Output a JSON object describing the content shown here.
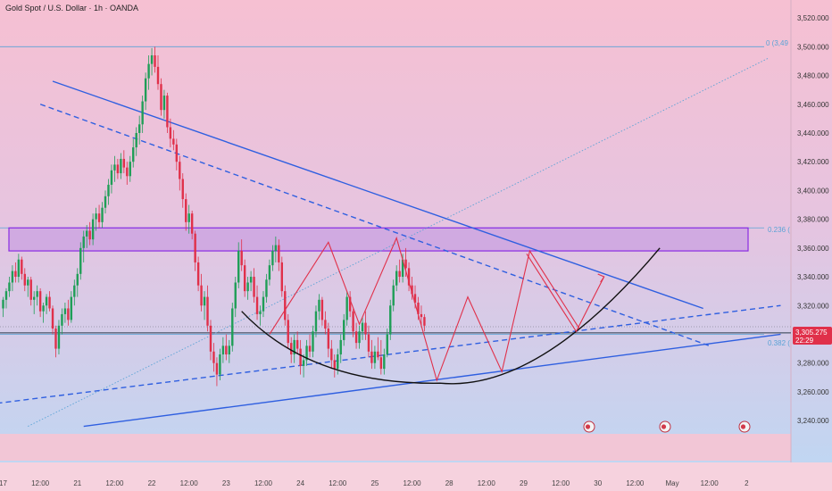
{
  "header": {
    "title": "Gold Spot / U.S. Dollar · 1h · OANDA"
  },
  "colors": {
    "bg_top": "#f6c0d2",
    "bg_bottom": "#bcd8f4",
    "up": "#1f9e57",
    "down": "#e0304a",
    "trend": "#2f5fe0",
    "curve": "#111111",
    "zone_fill": "#c9a0e0",
    "zone_stroke": "#8a2be2",
    "fib": "#5aa3d6",
    "price_badge": "#e0304a"
  },
  "price": {
    "value": "3,305.275",
    "countdown": "22:29"
  },
  "fib_labels": {
    "top": "0 (3,49",
    "mid": "0.236 (",
    "low": "0.382 ("
  },
  "chart_data": {
    "type": "candlestick",
    "title": "Gold Spot / U.S. Dollar · 1h · OANDA",
    "ylim": [
      3232,
      3530
    ],
    "y_ticks": [
      "3,520.000",
      "3,500.000",
      "3,480.000",
      "3,460.000",
      "3,440.000",
      "3,420.000",
      "3,400.000",
      "3,380.000",
      "3,360.000",
      "3,340.000",
      "3,320.000",
      "3,300.000",
      "3,280.000",
      "3,260.000",
      "3,240.000"
    ],
    "y_tick_values": [
      3520,
      3500,
      3480,
      3460,
      3440,
      3420,
      3400,
      3380,
      3360,
      3340,
      3320,
      3300,
      3280,
      3260,
      3240
    ],
    "x_ticks": [
      "17",
      "12:00",
      "21",
      "12:00",
      "22",
      "12:00",
      "23",
      "12:00",
      "24",
      "12:00",
      "25",
      "12:00",
      "28",
      "12:00",
      "29",
      "12:00",
      "30",
      "12:00",
      "May",
      "12:00",
      "2"
    ],
    "x_tick_index": [
      0,
      12,
      24,
      36,
      48,
      60,
      72,
      84,
      96,
      108,
      120,
      132,
      144,
      156,
      168,
      180,
      192,
      204,
      216,
      228,
      240
    ],
    "last_price": 3305.275,
    "resistance_zone": [
      3358,
      3374
    ],
    "fib_levels": [
      {
        "label": "0 (3,49",
        "value": 3500
      },
      {
        "label": "0.236 (",
        "value": 3374
      },
      {
        "label": "0.382 (",
        "value": 3300
      }
    ],
    "trendlines": [
      {
        "style": "solid",
        "from": [
          16,
          3476
        ],
        "to": [
          226,
          3318
        ]
      },
      {
        "style": "dashed",
        "from": [
          12,
          3460
        ],
        "to": [
          228,
          3292
        ]
      },
      {
        "style": "solid",
        "from": [
          26,
          3236
        ],
        "to": [
          251,
          3300
        ]
      },
      {
        "style": "dashed",
        "from": [
          -2,
          3252
        ],
        "to": [
          251,
          3320
        ]
      }
    ],
    "fib_diagonal": {
      "from": [
        8,
        3236
      ],
      "to": [
        247,
        3492
      ]
    },
    "horizontal_support": 3301,
    "rounding_bottom": {
      "start": [
        77,
        3316
      ],
      "bottom": [
        141,
        3266
      ],
      "end": [
        212,
        3360
      ]
    },
    "projection": [
      [
        169,
        3356
      ],
      [
        185,
        3302
      ],
      [
        194,
        3340
      ]
    ],
    "zigzag": [
      [
        86,
        3300
      ],
      [
        105,
        3364
      ],
      [
        115,
        3307
      ],
      [
        127,
        3367
      ],
      [
        140,
        3268
      ],
      [
        150,
        3326
      ],
      [
        161,
        3274
      ],
      [
        170,
        3358
      ],
      [
        186,
        3304
      ]
    ],
    "candles": [
      [
        3318,
        3326,
        3312,
        3324
      ],
      [
        3324,
        3332,
        3318,
        3330
      ],
      [
        3330,
        3340,
        3326,
        3336
      ],
      [
        3336,
        3348,
        3330,
        3344
      ],
      [
        3344,
        3350,
        3336,
        3340
      ],
      [
        3340,
        3356,
        3336,
        3352
      ],
      [
        3352,
        3354,
        3338,
        3342
      ],
      [
        3342,
        3346,
        3330,
        3334
      ],
      [
        3334,
        3340,
        3326,
        3338
      ],
      [
        3338,
        3340,
        3320,
        3324
      ],
      [
        3324,
        3330,
        3314,
        3326
      ],
      [
        3326,
        3334,
        3320,
        3330
      ],
      [
        3330,
        3332,
        3312,
        3316
      ],
      [
        3316,
        3322,
        3308,
        3320
      ],
      [
        3320,
        3328,
        3314,
        3326
      ],
      [
        3326,
        3330,
        3316,
        3318
      ],
      [
        3318,
        3320,
        3300,
        3304
      ],
      [
        3304,
        3306,
        3284,
        3290
      ],
      [
        3290,
        3310,
        3286,
        3306
      ],
      [
        3306,
        3318,
        3300,
        3314
      ],
      [
        3314,
        3322,
        3308,
        3318
      ],
      [
        3318,
        3324,
        3306,
        3310
      ],
      [
        3310,
        3330,
        3308,
        3326
      ],
      [
        3326,
        3338,
        3320,
        3334
      ],
      [
        3334,
        3346,
        3326,
        3342
      ],
      [
        3342,
        3364,
        3338,
        3360
      ],
      [
        3360,
        3372,
        3350,
        3368
      ],
      [
        3368,
        3376,
        3360,
        3372
      ],
      [
        3372,
        3378,
        3362,
        3366
      ],
      [
        3366,
        3384,
        3362,
        3380
      ],
      [
        3380,
        3388,
        3372,
        3384
      ],
      [
        3384,
        3390,
        3374,
        3378
      ],
      [
        3378,
        3392,
        3374,
        3388
      ],
      [
        3388,
        3400,
        3384,
        3396
      ],
      [
        3396,
        3408,
        3390,
        3404
      ],
      [
        3404,
        3418,
        3398,
        3414
      ],
      [
        3414,
        3424,
        3406,
        3418
      ],
      [
        3418,
        3422,
        3408,
        3412
      ],
      [
        3412,
        3426,
        3408,
        3422
      ],
      [
        3422,
        3428,
        3412,
        3416
      ],
      [
        3416,
        3420,
        3404,
        3410
      ],
      [
        3410,
        3424,
        3406,
        3420
      ],
      [
        3420,
        3436,
        3416,
        3430
      ],
      [
        3430,
        3444,
        3424,
        3440
      ],
      [
        3440,
        3452,
        3432,
        3446
      ],
      [
        3446,
        3466,
        3440,
        3462
      ],
      [
        3462,
        3482,
        3456,
        3478
      ],
      [
        3478,
        3494,
        3470,
        3488
      ],
      [
        3488,
        3499,
        3480,
        3494
      ],
      [
        3494,
        3500,
        3482,
        3486
      ],
      [
        3486,
        3494,
        3470,
        3474
      ],
      [
        3474,
        3478,
        3452,
        3456
      ],
      [
        3456,
        3470,
        3450,
        3466
      ],
      [
        3466,
        3468,
        3440,
        3444
      ],
      [
        3444,
        3450,
        3430,
        3436
      ],
      [
        3436,
        3442,
        3428,
        3432
      ],
      [
        3432,
        3436,
        3414,
        3420
      ],
      [
        3420,
        3424,
        3400,
        3408
      ],
      [
        3408,
        3412,
        3388,
        3394
      ],
      [
        3394,
        3398,
        3372,
        3378
      ],
      [
        3378,
        3390,
        3370,
        3384
      ],
      [
        3384,
        3386,
        3366,
        3370
      ],
      [
        3370,
        3372,
        3344,
        3350
      ],
      [
        3350,
        3354,
        3330,
        3334
      ],
      [
        3334,
        3342,
        3316,
        3320
      ],
      [
        3320,
        3330,
        3310,
        3326
      ],
      [
        3326,
        3334,
        3302,
        3306
      ],
      [
        3306,
        3310,
        3282,
        3288
      ],
      [
        3288,
        3294,
        3274,
        3280
      ],
      [
        3280,
        3284,
        3264,
        3272
      ],
      [
        3272,
        3290,
        3268,
        3286
      ],
      [
        3286,
        3298,
        3280,
        3292
      ],
      [
        3292,
        3300,
        3282,
        3286
      ],
      [
        3286,
        3296,
        3280,
        3292
      ],
      [
        3292,
        3322,
        3288,
        3318
      ],
      [
        3318,
        3340,
        3312,
        3336
      ],
      [
        3336,
        3364,
        3332,
        3358
      ],
      [
        3358,
        3366,
        3344,
        3348
      ],
      [
        3348,
        3352,
        3326,
        3330
      ],
      [
        3330,
        3340,
        3324,
        3336
      ],
      [
        3336,
        3344,
        3330,
        3340
      ],
      [
        3340,
        3346,
        3322,
        3326
      ],
      [
        3326,
        3334,
        3310,
        3314
      ],
      [
        3314,
        3320,
        3306,
        3316
      ],
      [
        3316,
        3330,
        3312,
        3326
      ],
      [
        3326,
        3342,
        3322,
        3338
      ],
      [
        3338,
        3352,
        3334,
        3348
      ],
      [
        3348,
        3362,
        3344,
        3358
      ],
      [
        3358,
        3368,
        3350,
        3362
      ],
      [
        3362,
        3366,
        3344,
        3350
      ],
      [
        3350,
        3354,
        3326,
        3330
      ],
      [
        3330,
        3334,
        3306,
        3310
      ],
      [
        3310,
        3314,
        3290,
        3294
      ],
      [
        3294,
        3298,
        3280,
        3286
      ],
      [
        3286,
        3300,
        3280,
        3296
      ],
      [
        3296,
        3302,
        3286,
        3290
      ],
      [
        3290,
        3296,
        3272,
        3278
      ],
      [
        3278,
        3286,
        3270,
        3282
      ],
      [
        3282,
        3296,
        3278,
        3292
      ],
      [
        3292,
        3300,
        3284,
        3288
      ],
      [
        3288,
        3306,
        3284,
        3302
      ],
      [
        3302,
        3320,
        3298,
        3316
      ],
      [
        3316,
        3328,
        3310,
        3324
      ],
      [
        3324,
        3326,
        3306,
        3310
      ],
      [
        3310,
        3316,
        3300,
        3304
      ],
      [
        3304,
        3308,
        3284,
        3290
      ],
      [
        3290,
        3296,
        3276,
        3282
      ],
      [
        3282,
        3286,
        3270,
        3276
      ],
      [
        3276,
        3290,
        3272,
        3286
      ],
      [
        3286,
        3300,
        3280,
        3296
      ],
      [
        3296,
        3314,
        3292,
        3310
      ],
      [
        3310,
        3330,
        3306,
        3326
      ],
      [
        3326,
        3330,
        3312,
        3316
      ],
      [
        3316,
        3318,
        3298,
        3302
      ],
      [
        3302,
        3308,
        3290,
        3294
      ],
      [
        3294,
        3306,
        3290,
        3302
      ],
      [
        3302,
        3312,
        3296,
        3308
      ],
      [
        3308,
        3316,
        3296,
        3300
      ],
      [
        3300,
        3306,
        3284,
        3288
      ],
      [
        3288,
        3296,
        3276,
        3280
      ],
      [
        3280,
        3292,
        3276,
        3288
      ],
      [
        3288,
        3298,
        3282,
        3284
      ],
      [
        3284,
        3296,
        3272,
        3276
      ],
      [
        3276,
        3290,
        3272,
        3286
      ],
      [
        3286,
        3304,
        3284,
        3300
      ],
      [
        3300,
        3324,
        3296,
        3320
      ],
      [
        3320,
        3338,
        3316,
        3334
      ],
      [
        3334,
        3348,
        3330,
        3344
      ],
      [
        3344,
        3352,
        3336,
        3340
      ],
      [
        3340,
        3356,
        3336,
        3352
      ],
      [
        3352,
        3360,
        3340,
        3346
      ],
      [
        3346,
        3350,
        3330,
        3334
      ],
      [
        3334,
        3340,
        3324,
        3328
      ],
      [
        3328,
        3334,
        3318,
        3322
      ],
      [
        3322,
        3326,
        3310,
        3314
      ],
      [
        3314,
        3320,
        3306,
        3312
      ],
      [
        3312,
        3314,
        3302,
        3306
      ]
    ]
  }
}
